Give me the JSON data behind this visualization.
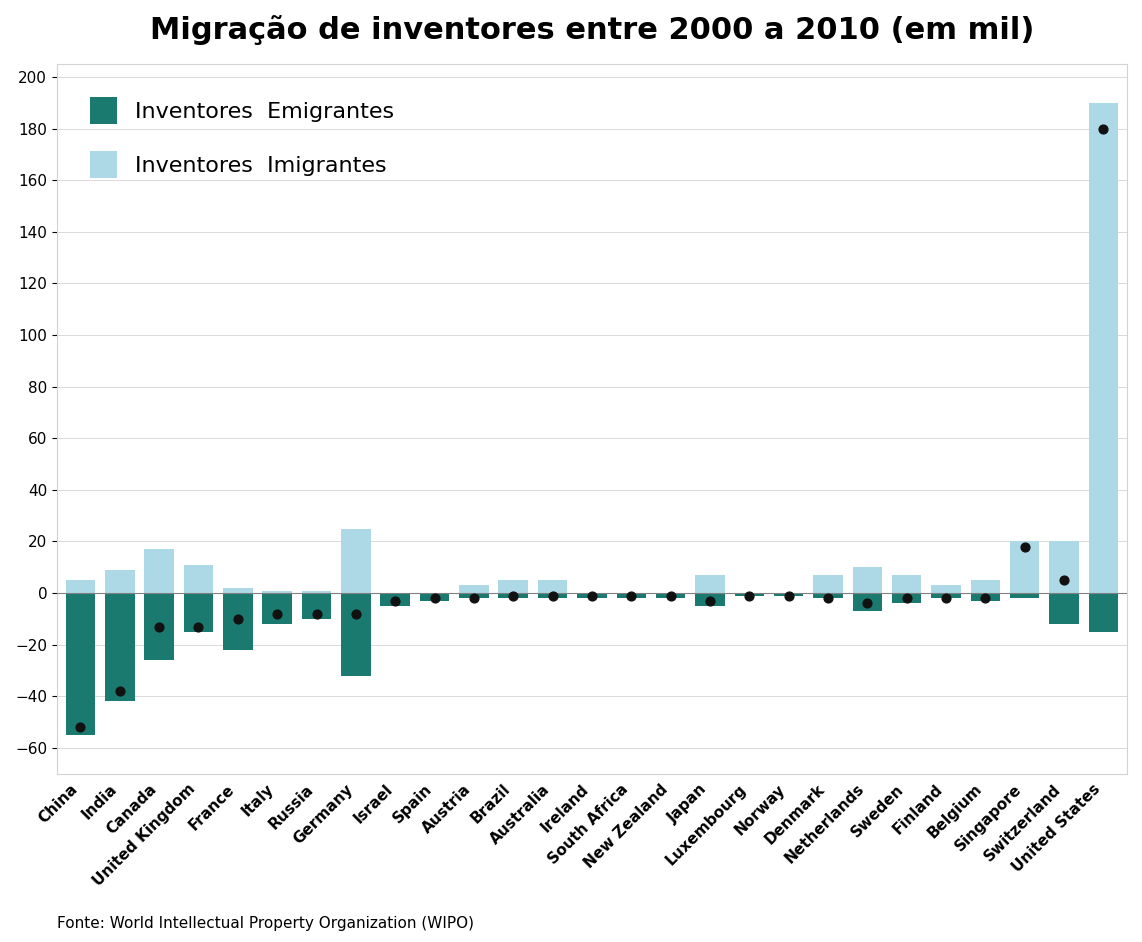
{
  "title": "Migração de inventores entre 2000 a 2010 (em mil)",
  "footnote": "Fonte: World Intellectual Property Organization (WIPO)",
  "legend_emigrantes": "Inventores  Emigrantes",
  "legend_imigrantes": "Inventores  Imigrantes",
  "color_emigrantes": "#1a7a70",
  "color_imigrantes": "#add8e6",
  "color_dot": "#111111",
  "ylim": [
    -70,
    205
  ],
  "yticks": [
    -60,
    -40,
    -20,
    0,
    20,
    40,
    60,
    80,
    100,
    120,
    140,
    160,
    180,
    200
  ],
  "countries": [
    "China",
    "India",
    "Canada",
    "United Kingdom",
    "France",
    "Italy",
    "Russia",
    "Germany",
    "Israel",
    "Spain",
    "Austria",
    "Brazil",
    "Australia",
    "Ireland",
    "South Africa",
    "New Zealand",
    "Japan",
    "Luxembourg",
    "Norway",
    "Denmark",
    "Netherlands",
    "Sweden",
    "Finland",
    "Belgium",
    "Singapore",
    "Switzerland",
    "United States"
  ],
  "emigrants": [
    -55,
    -42,
    -26,
    -15,
    -22,
    -12,
    -10,
    -32,
    -5,
    -3,
    -2,
    -2,
    -2,
    -2,
    -2,
    -2,
    -5,
    -1,
    -1,
    -2,
    -7,
    -4,
    -2,
    -3,
    -2,
    -12,
    -15
  ],
  "immigrants": [
    5,
    9,
    17,
    11,
    2,
    1,
    1,
    25,
    0,
    0,
    3,
    5,
    5,
    0,
    0,
    0,
    7,
    0,
    0,
    7,
    10,
    7,
    3,
    5,
    20,
    20,
    190
  ],
  "dots": [
    -52,
    -38,
    -13,
    -13,
    -10,
    -8,
    -8,
    -8,
    -3,
    -2,
    -2,
    -1,
    -1,
    -1,
    -1,
    -1,
    -3,
    -1,
    -1,
    -2,
    -4,
    -2,
    -2,
    -2,
    18,
    5,
    180
  ],
  "background_color": "#ffffff",
  "title_fontsize": 22,
  "tick_fontsize": 11,
  "legend_fontsize": 16
}
